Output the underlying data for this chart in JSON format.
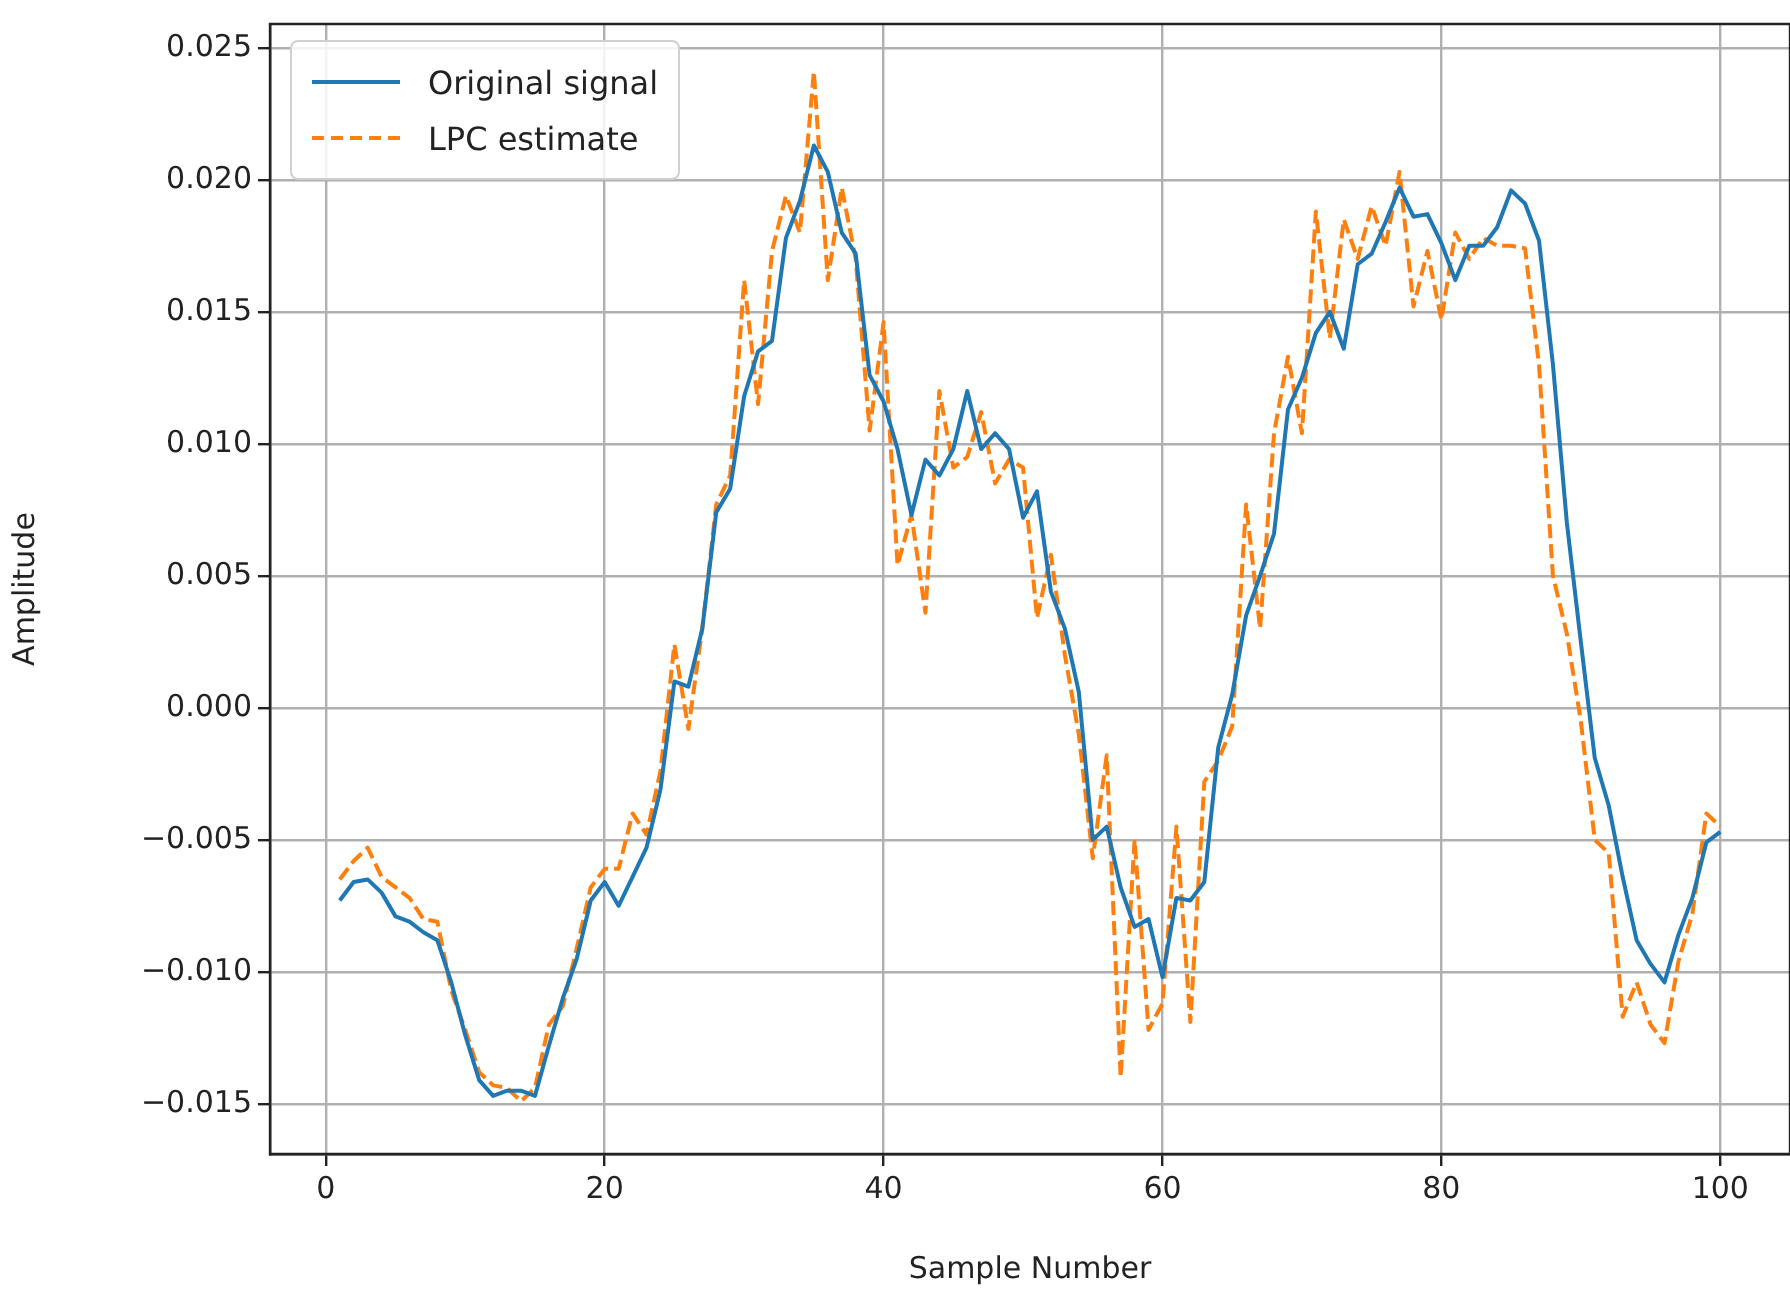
{
  "chart_data": {
    "type": "line",
    "xlabel": "Sample Number",
    "ylabel": "Amplitude",
    "x": [
      1,
      2,
      3,
      4,
      5,
      6,
      7,
      8,
      9,
      10,
      11,
      12,
      13,
      14,
      15,
      16,
      17,
      18,
      19,
      20,
      21,
      22,
      23,
      24,
      25,
      26,
      27,
      28,
      29,
      30,
      31,
      32,
      33,
      34,
      35,
      36,
      37,
      38,
      39,
      40,
      41,
      42,
      43,
      44,
      45,
      46,
      47,
      48,
      49,
      50,
      51,
      52,
      53,
      54,
      55,
      56,
      57,
      58,
      59,
      60,
      61,
      62,
      63,
      64,
      65,
      66,
      67,
      68,
      69,
      70,
      71,
      72,
      73,
      74,
      75,
      76,
      77,
      78,
      79,
      80,
      81,
      82,
      83,
      84,
      85,
      86,
      87,
      88,
      89,
      90,
      91,
      92,
      93,
      94,
      95,
      96,
      97,
      98,
      99,
      100
    ],
    "series": [
      {
        "name": "Original signal",
        "color": "#1f77b4",
        "line_style": "solid",
        "values": [
          -0.0073,
          -0.0066,
          -0.0065,
          -0.007,
          -0.0079,
          -0.0081,
          -0.0085,
          -0.0088,
          -0.0104,
          -0.0124,
          -0.0141,
          -0.0147,
          -0.0145,
          -0.0145,
          -0.0147,
          -0.0128,
          -0.011,
          -0.0095,
          -0.0073,
          -0.0066,
          -0.0075,
          -0.0064,
          -0.0053,
          -0.0031,
          0.001,
          0.0008,
          0.003,
          0.0074,
          0.0083,
          0.0118,
          0.0135,
          0.0139,
          0.0178,
          0.0192,
          0.0213,
          0.0203,
          0.018,
          0.0172,
          0.0126,
          0.0116,
          0.0098,
          0.0073,
          0.0094,
          0.0088,
          0.0098,
          0.012,
          0.0098,
          0.0104,
          0.0098,
          0.0072,
          0.0082,
          0.0044,
          0.003,
          0.0006,
          -0.005,
          -0.0045,
          -0.0068,
          -0.0083,
          -0.008,
          -0.0102,
          -0.0072,
          -0.0073,
          -0.0066,
          -0.0015,
          0.0005,
          0.0035,
          0.005,
          0.0066,
          0.0113,
          0.0125,
          0.0142,
          0.015,
          0.0136,
          0.0168,
          0.0172,
          0.0184,
          0.0197,
          0.0186,
          0.0187,
          0.0176,
          0.0162,
          0.0175,
          0.0175,
          0.0182,
          0.0196,
          0.0191,
          0.0177,
          0.013,
          0.007,
          0.0025,
          -0.0019,
          -0.0037,
          -0.0064,
          -0.0088,
          -0.0097,
          -0.0104,
          -0.0086,
          -0.0072,
          -0.0051,
          -0.0047
        ]
      },
      {
        "name": "LPC estimate",
        "color": "#ff7f0e",
        "line_style": "dashed",
        "values": [
          -0.0065,
          -0.0058,
          -0.0053,
          -0.0064,
          -0.0068,
          -0.0072,
          -0.008,
          -0.0081,
          -0.0107,
          -0.0122,
          -0.0138,
          -0.0143,
          -0.0144,
          -0.0149,
          -0.0144,
          -0.012,
          -0.0113,
          -0.0091,
          -0.0068,
          -0.0061,
          -0.0061,
          -0.004,
          -0.0048,
          -0.0024,
          0.0024,
          -0.0008,
          0.003,
          0.0077,
          0.0088,
          0.0162,
          0.0115,
          0.0173,
          0.0194,
          0.018,
          0.0241,
          0.0162,
          0.0197,
          0.017,
          0.0105,
          0.0146,
          0.0054,
          0.0073,
          0.0036,
          0.012,
          0.0091,
          0.0095,
          0.0112,
          0.0085,
          0.0094,
          0.0091,
          0.0034,
          0.0058,
          0.002,
          -0.001,
          -0.0057,
          -0.0018,
          -0.014,
          -0.005,
          -0.0122,
          -0.0112,
          -0.0045,
          -0.0119,
          -0.0028,
          -0.002,
          -0.0007,
          0.0077,
          0.003,
          0.0104,
          0.0133,
          0.0104,
          0.0188,
          0.014,
          0.0185,
          0.017,
          0.019,
          0.0175,
          0.0203,
          0.0152,
          0.0173,
          0.0147,
          0.018,
          0.017,
          0.0178,
          0.0175,
          0.0175,
          0.0174,
          0.013,
          0.005,
          0.0028,
          -0.0005,
          -0.005,
          -0.0055,
          -0.0117,
          -0.0104,
          -0.012,
          -0.0127,
          -0.0096,
          -0.0078,
          -0.004,
          -0.0045
        ]
      }
    ],
    "xlim": [
      -4,
      105
    ],
    "xticks": [
      0,
      20,
      40,
      60,
      80,
      100
    ],
    "ylim": [
      -0.0169,
      0.0259
    ],
    "yticks": [
      {
        "value": -0.015,
        "label": "−0.015"
      },
      {
        "value": -0.01,
        "label": "−0.010"
      },
      {
        "value": -0.005,
        "label": "−0.005"
      },
      {
        "value": 0,
        "label": "0.000"
      },
      {
        "value": 0.005,
        "label": "0.005"
      },
      {
        "value": 0.01,
        "label": "0.010"
      },
      {
        "value": 0.015,
        "label": "0.015"
      },
      {
        "value": 0.02,
        "label": "0.020"
      },
      {
        "value": 0.025,
        "label": "0.025"
      }
    ],
    "grid": true,
    "legend": "top left",
    "marker": "none"
  }
}
